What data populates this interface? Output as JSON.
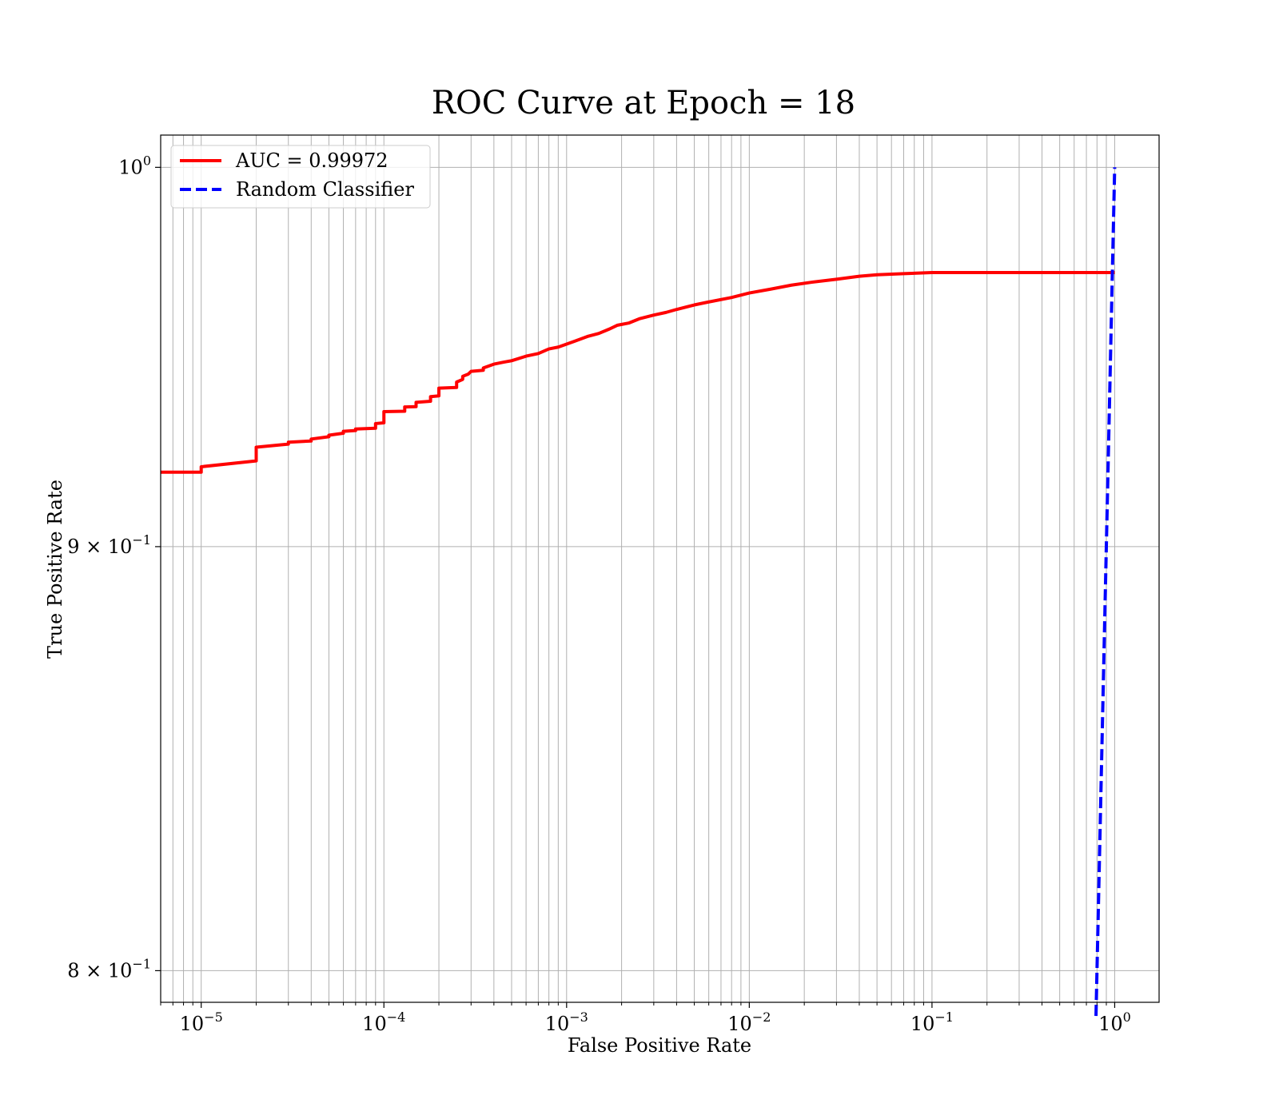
{
  "chart_data": {
    "type": "line",
    "title": "ROC Curve at Epoch = 18",
    "xlabel": "False Positive Rate",
    "ylabel": "True Positive Rate",
    "xscale": "log",
    "yscale": "log",
    "xlim": [
      6e-06,
      1.75
    ],
    "ylim": [
      0.793,
      1.009
    ],
    "grid": true,
    "legend_position": "upper left",
    "x_ticks": [
      {
        "value": 1e-05,
        "base": "10",
        "exp": "−5"
      },
      {
        "value": 0.0001,
        "base": "10",
        "exp": "−4"
      },
      {
        "value": 0.001,
        "base": "10",
        "exp": "−3"
      },
      {
        "value": 0.01,
        "base": "10",
        "exp": "−2"
      },
      {
        "value": 0.1,
        "base": "10",
        "exp": "−1"
      },
      {
        "value": 1,
        "base": "10",
        "exp": "0"
      }
    ],
    "y_ticks": [
      {
        "value": 1.0,
        "base": "10",
        "exp": "0"
      },
      {
        "value": 0.9,
        "base": "9 × 10",
        "exp": "−1"
      },
      {
        "value": 0.8,
        "base": "8 × 10",
        "exp": "−1"
      }
    ],
    "series": [
      {
        "name": "AUC = 0.99972",
        "color": "#ff0000",
        "style": "solid",
        "x": [
          6e-06,
          1e-05,
          1e-05,
          2e-05,
          2e-05,
          3e-05,
          3e-05,
          4e-05,
          4e-05,
          5e-05,
          5e-05,
          6e-05,
          6e-05,
          7e-05,
          7e-05,
          9e-05,
          9e-05,
          0.0001,
          0.0001,
          0.00013,
          0.00013,
          0.00015,
          0.00015,
          0.00018,
          0.00018,
          0.0002,
          0.0002,
          0.00025,
          0.00025,
          0.00027,
          0.00027,
          0.00029,
          0.0003,
          0.00035,
          0.00035,
          0.0004,
          0.00045,
          0.0005,
          0.0006,
          0.0007,
          0.0008,
          0.0009,
          0.0011,
          0.0013,
          0.0015,
          0.0017,
          0.0019,
          0.0022,
          0.0025,
          0.003,
          0.0035,
          0.004,
          0.005,
          0.006,
          0.008,
          0.01,
          0.013,
          0.017,
          0.022,
          0.03,
          0.04,
          0.05,
          0.07,
          0.1,
          1.0
        ],
        "y": [
          0.9188,
          0.9188,
          0.9202,
          0.9217,
          0.9252,
          0.926,
          0.9265,
          0.9268,
          0.9273,
          0.9279,
          0.9283,
          0.9288,
          0.9293,
          0.9295,
          0.9299,
          0.9301,
          0.9313,
          0.9315,
          0.9344,
          0.9345,
          0.9356,
          0.9357,
          0.9368,
          0.9371,
          0.9383,
          0.9385,
          0.9405,
          0.9407,
          0.9421,
          0.9428,
          0.9436,
          0.9442,
          0.9449,
          0.9452,
          0.9458,
          0.9468,
          0.9473,
          0.9477,
          0.9489,
          0.9496,
          0.9508,
          0.9513,
          0.9528,
          0.9541,
          0.9549,
          0.956,
          0.9571,
          0.9577,
          0.9588,
          0.9598,
          0.9605,
          0.9613,
          0.9625,
          0.9633,
          0.9645,
          0.9657,
          0.9667,
          0.9678,
          0.9686,
          0.9694,
          0.9702,
          0.9706,
          0.9709,
          0.9712,
          0.9712
        ]
      },
      {
        "name": "Random Classifier",
        "color": "#0000ff",
        "style": "dashed",
        "x": [
          0.79,
          1.0
        ],
        "y": [
          0.79,
          1.0
        ]
      }
    ]
  }
}
